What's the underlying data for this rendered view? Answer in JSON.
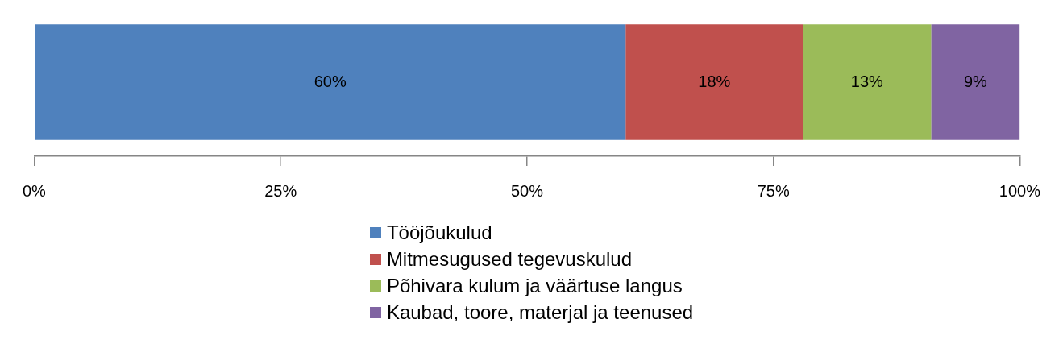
{
  "chart_data": {
    "type": "bar",
    "orientation": "horizontal",
    "stacked": true,
    "categories": [
      null
    ],
    "series": [
      {
        "name": "Tööjõukulud",
        "color": "#4f81bd",
        "values": [
          60
        ],
        "value_labels": [
          "60%"
        ]
      },
      {
        "name": "Mitmesugused tegevuskulud",
        "color": "#c0504d",
        "values": [
          18
        ],
        "value_labels": [
          "18%"
        ]
      },
      {
        "name": "Põhivara kulum ja väärtuse langus",
        "color": "#9bbb59",
        "values": [
          13
        ],
        "value_labels": [
          "13%"
        ]
      },
      {
        "name": "Kaubad, toore, materjal ja teenused",
        "color": "#8064a2",
        "values": [
          9
        ],
        "value_labels": [
          "9%"
        ]
      }
    ],
    "xlim": [
      0,
      100
    ],
    "xticks": [
      {
        "value": 0,
        "label": "0%"
      },
      {
        "value": 25,
        "label": "25%"
      },
      {
        "value": 50,
        "label": "50%"
      },
      {
        "value": 75,
        "label": "75%"
      },
      {
        "value": 100,
        "label": "100%"
      }
    ],
    "grid": false,
    "legend": "bottom"
  }
}
